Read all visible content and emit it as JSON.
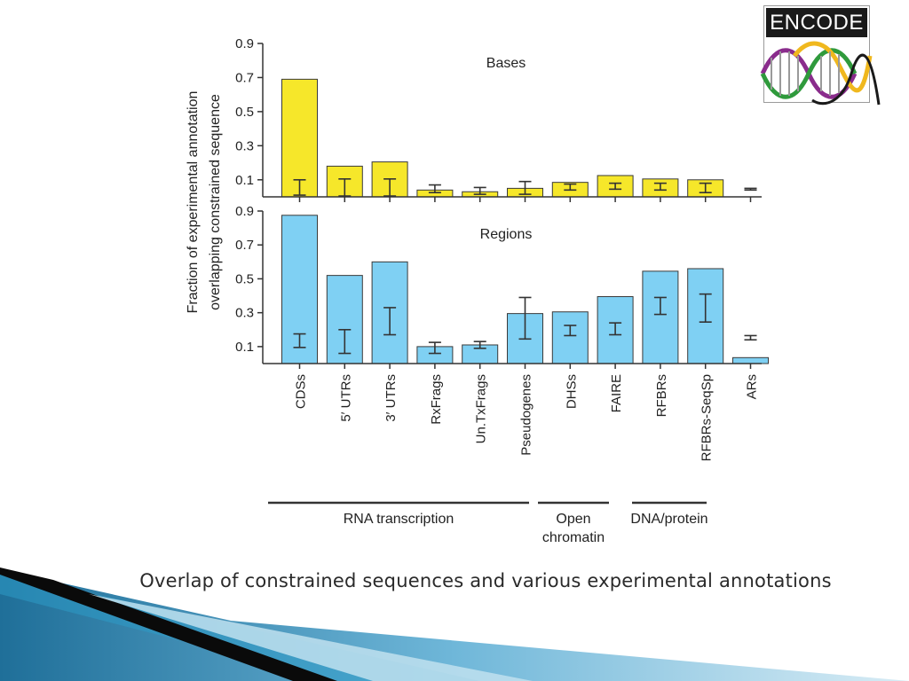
{
  "slide": {
    "caption": "Overlap of constrained sequences and various experimental annotations",
    "logo_text": "ENCODE",
    "colors": {
      "bases": "#f6e72a",
      "regions": "#7fd0f3",
      "bar_stroke": "#3a3a3a"
    }
  },
  "chart_data": {
    "type": "bar",
    "ylabel": [
      "Fraction of experimental annotation",
      "overlapping constrained sequence"
    ],
    "categories": [
      "CDSs",
      "5′ UTRs",
      "3′ UTRs",
      "RxFrags",
      "Un.TxFrags",
      "Pseudogenes",
      "DHSs",
      "FAIRE",
      "RFBRs",
      "RFBRs-SeqSp",
      "ARs"
    ],
    "ylim": [
      0,
      0.9
    ],
    "yticks": [
      0.1,
      0.3,
      0.5,
      0.7,
      0.9
    ],
    "grid": false,
    "panels": [
      {
        "title": "Bases",
        "color": "#f6e72a",
        "values": [
          0.69,
          0.18,
          0.205,
          0.04,
          0.03,
          0.05,
          0.085,
          0.125,
          0.105,
          0.1,
          0
        ],
        "error_bars": [
          [
            0.01,
            0.1
          ],
          [
            0.005,
            0.105
          ],
          [
            0.005,
            0.105
          ],
          [
            0.025,
            0.07
          ],
          [
            0.015,
            0.055
          ],
          [
            0.015,
            0.09
          ],
          [
            0.04,
            0.075
          ],
          [
            0.045,
            0.08
          ],
          [
            0.04,
            0.08
          ],
          [
            0.025,
            0.08
          ],
          [
            0.04,
            0.05
          ]
        ]
      },
      {
        "title": "Regions",
        "color": "#7fd0f3",
        "values": [
          0.875,
          0.52,
          0.6,
          0.1,
          0.11,
          0.295,
          0.305,
          0.395,
          0.545,
          0.56,
          0.035
        ],
        "error_bars": [
          [
            0.095,
            0.175
          ],
          [
            0.06,
            0.2
          ],
          [
            0.17,
            0.33
          ],
          [
            0.06,
            0.125
          ],
          [
            0.09,
            0.13
          ],
          [
            0.145,
            0.39
          ],
          [
            0.165,
            0.225
          ],
          [
            0.17,
            0.24
          ],
          [
            0.29,
            0.39
          ],
          [
            0.245,
            0.41
          ],
          [
            0.14,
            0.165
          ]
        ]
      }
    ],
    "groups": [
      {
        "label": [
          "RNA transcription"
        ],
        "categories": [
          "CDSs",
          "5′ UTRs",
          "3′ UTRs",
          "RxFrags",
          "Un.TxFrags",
          "Pseudogenes"
        ]
      },
      {
        "label": [
          "Open",
          "chromatin"
        ],
        "categories": [
          "DHSs",
          "FAIRE"
        ]
      },
      {
        "label": [
          "DNA/protein"
        ],
        "categories": [
          "RFBRs",
          "RFBRs-SeqSp"
        ]
      }
    ]
  }
}
